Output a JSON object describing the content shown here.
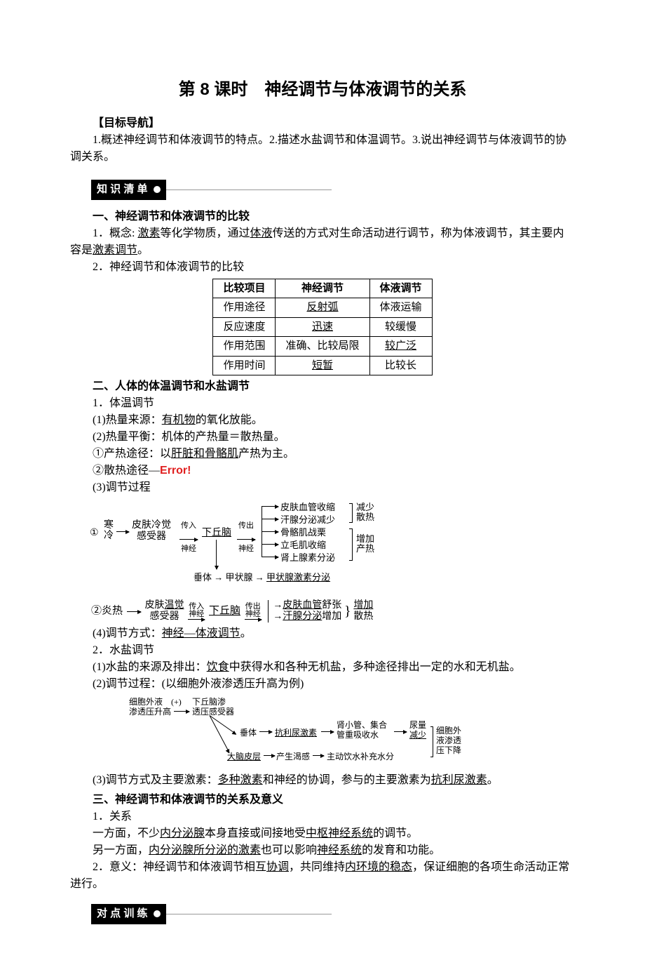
{
  "title": "第 8 课时　神经调节与体液调节的关系",
  "goals": {
    "heading": "【目标导航】",
    "text": "1.概述神经调节和体液调节的特点。2.描述水盐调节和体温调节。3.说出神经调节与体液调节的协调关系。"
  },
  "section_labels": {
    "zscd": "知 识 清 单",
    "dd": "对 点 训 练"
  },
  "sec1": {
    "heading": "一、神经调节和体液调节的比较",
    "p1a": "1．概念: ",
    "p1b": "激素",
    "p1c": "等化学物质，通过",
    "p1d": "体液",
    "p1e": "传送的方式对生命活动进行调节，称为体液调节，其主要内容是",
    "p1f": "激素调节",
    "p1g": "。",
    "p2": "2．神经调节和体液调节的比较",
    "table": {
      "columns": [
        "比较项目",
        "神经调节",
        "体液调节"
      ],
      "rows": [
        [
          "作用途径",
          "反射弧",
          "体液运输"
        ],
        [
          "反应速度",
          "迅速",
          "较缓慢"
        ],
        [
          "作用范围",
          "准确、比较局限",
          "较广泛"
        ],
        [
          "作用时间",
          "短暂",
          "比较长"
        ]
      ],
      "underline_cells": [
        [
          0,
          1
        ],
        [
          1,
          1
        ],
        [
          2,
          2
        ],
        [
          3,
          1
        ]
      ]
    }
  },
  "sec2": {
    "heading": "二、人体的体温调节和水盐调节",
    "pt1": "1．体温调节",
    "pt1a_1": "(1)热量来源：",
    "pt1a_2": "有机物",
    "pt1a_3": "的氧化放能。",
    "pt1b": "(2)热量平衡：机体的产热量＝散热量。",
    "pt1c_1": "①产热途径：以",
    "pt1c_2": "肝脏和骨骼肌",
    "pt1c_3": "产热为主。",
    "pt1d_1": "②散热途径—",
    "pt1d_2": "Error!",
    "pt1e": "(3)调节过程",
    "flow1": {
      "start_circled": "①",
      "start": "寒\n冷",
      "n1_top": "皮肤冷觉",
      "n1_bot": "感受器",
      "a1_top": "传入",
      "a1_bot": "神经",
      "n2": "下丘脑",
      "a2_top": "传出",
      "a2_bot": "神经",
      "out": [
        "皮肤血管收缩",
        "汗腺分泌减少",
        "骨骼肌战栗",
        "立毛肌收缩",
        "肾上腺素分泌"
      ],
      "g1_top": "减少",
      "g1_bot": "散热",
      "g2_top": "增加",
      "g2_bot": "产热",
      "bottom": "垂体 → 甲状腺 → ",
      "bottom_u": "甲状腺激素分泌"
    },
    "flow2": {
      "start": "②炎热",
      "n1_top": "皮肤",
      "n1_mid": "温觉",
      "n1_bot": "感受器",
      "a1": "传入\n神经",
      "n2": "下丘脑",
      "a2": "传出\n神经",
      "out1_a": "皮肤血管",
      "out1_b": "舒张",
      "out2_a": "汗腺分泌",
      "out2_b": "增加",
      "g_top": "增加",
      "g_bot": "散热"
    },
    "pt1f_1": "(4)调节方式：",
    "pt1f_2": "神经—体液调节",
    "pt1f_3": "。",
    "pt2": "2．水盐调节",
    "pt2a_1": "(1)水盐的来源及排出：",
    "pt2a_2": "饮食",
    "pt2a_3": "中获得水和各种无机盐，多种途径排出一定的水和无机盐。",
    "pt2b": "(2)调节过程：(以细胞外液渗透压升高为例)",
    "ws": {
      "l1a": "细胞外液",
      "l1b": "(+)",
      "l1c": "下丘脑渗",
      "l2a": "渗透压升高",
      "l2c": "透压感受器",
      "mid1": "垂体",
      "mid2": "抗利尿激素",
      "mid3a": "肾小管、集合",
      "mid3b": "管重吸收水",
      "mid4a": "尿量",
      "mid4b": "减少",
      "bot1": "大脑皮层",
      "bot2": "产生渴感",
      "bot3": "主动饮水补充水分",
      "side": "细胞外\n液渗透\n压下降"
    },
    "pt2c_1": "(3)调节方式及主要激素：",
    "pt2c_2": "多种激素",
    "pt2c_3": "和神经的协调，参与的主要激素为",
    "pt2c_4": "抗利尿激素",
    "pt2c_5": "。"
  },
  "sec3": {
    "heading": "三、神经调节和体液调节的关系及意义",
    "p1": "1．关系",
    "p1a_1": "一方面，不少",
    "p1a_2": "内分泌腺",
    "p1a_3": "本身直接或间接地受",
    "p1a_4": "中枢神经系统",
    "p1a_5": "的调节。",
    "p1b_1": "另一方面，",
    "p1b_2": "内分泌腺所分泌的激素",
    "p1b_3": "也可以影响",
    "p1b_4": "神经系统",
    "p1b_5": "的发育和功能。",
    "p2_1": "2．意义：神经调节和体液调节相互",
    "p2_2": "协调",
    "p2_3": "，共同维持",
    "p2_4": "内环境的稳态",
    "p2_5": "，保证细胞的各项生命活动正常进行。"
  },
  "colors": {
    "error": "#e02020",
    "text": "#000000",
    "label_bg": "#000000",
    "label_fg": "#ffffff"
  }
}
